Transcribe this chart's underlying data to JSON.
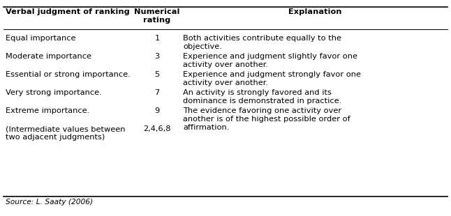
{
  "header": [
    "Verbal judgment of ranking",
    "Numerical\nrating",
    "Explanation"
  ],
  "rows": [
    {
      "col1": "Equal importance",
      "col2": "1",
      "col3": "Both activities contribute equally to the\nobjective."
    },
    {
      "col1": "Moderate importance",
      "col2": "3",
      "col3": "Experience and judgment slightly favor one\nactivity over another."
    },
    {
      "col1": "Essential or strong importance.",
      "col2": "5",
      "col3": "Experience and judgment strongly favor one\nactivity over another."
    },
    {
      "col1": "Very strong importance.",
      "col2": "7",
      "col3": "An activity is strongly favored and its\ndominance is demonstrated in practice."
    },
    {
      "col1": "Extreme importance.",
      "col2": "9",
      "col3": "The evidence favoring one activity over\nanother is of the highest possible order of\naffirmation."
    },
    {
      "col1": "(Intermediate values between\ntwo adjacent judgments)",
      "col2": "2,4,6,8",
      "col3": ""
    }
  ],
  "source": "Source: L. Saaty (2006)",
  "font_size": 8.2,
  "bg_color": "#ffffff",
  "text_color": "#000000",
  "line_color": "#000000"
}
